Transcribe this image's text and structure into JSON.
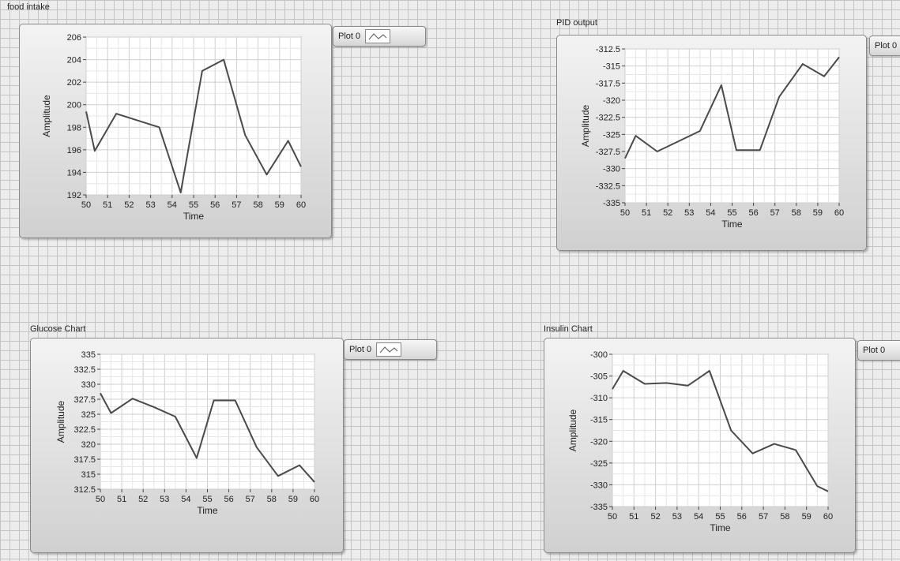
{
  "charts": [
    {
      "id": "food",
      "label": "food intake",
      "legend_label": "Plot 0",
      "chart_data": {
        "type": "line",
        "title": "food intake",
        "xlabel": "Time",
        "ylabel": "Amplitude",
        "xlim": [
          50,
          60
        ],
        "ylim": [
          192,
          206
        ],
        "xticks": [
          "50",
          "51",
          "52",
          "53",
          "54",
          "55",
          "56",
          "57",
          "58",
          "59",
          "60"
        ],
        "yticks": [
          "192",
          "194",
          "196",
          "198",
          "200",
          "202",
          "204",
          "206"
        ],
        "grid": true,
        "series": [
          {
            "x": [
              50,
              50.4,
              51.4,
              52.4,
              53.4,
              54.4,
              55.4,
              56.4,
              57.4,
              58.4,
              59.4,
              60
            ],
            "y": [
              199.4,
              195.9,
              199.2,
              198.6,
              198.0,
              192.2,
              203.0,
              204.0,
              197.3,
              193.8,
              196.8,
              194.5
            ]
          }
        ]
      }
    },
    {
      "id": "pid",
      "label": "PID output",
      "legend_label": "Plot 0",
      "chart_data": {
        "type": "line",
        "title": "PID output",
        "xlabel": "Time",
        "ylabel": "Amplitude",
        "xlim": [
          50,
          60
        ],
        "ylim": [
          -335,
          -312.5
        ],
        "xticks": [
          "50",
          "51",
          "52",
          "53",
          "54",
          "55",
          "56",
          "57",
          "58",
          "59",
          "60"
        ],
        "yticks": [
          "-312.5",
          "-315",
          "-317.5",
          "-320",
          "-322.5",
          "-325",
          "-327.5",
          "-330",
          "-332.5",
          "-335"
        ],
        "grid": true,
        "series": [
          {
            "x": [
              50,
              50.5,
              51.5,
              52.5,
              53.5,
              54.5,
              55.2,
              56.3,
              57.2,
              58.3,
              59.3,
              60
            ],
            "y": [
              -328.5,
              -325.2,
              -327.5,
              -326.0,
              -324.5,
              -317.8,
              -327.3,
              -327.3,
              -319.5,
              -314.7,
              -316.5,
              -313.7
            ]
          }
        ]
      }
    },
    {
      "id": "glucose",
      "label": "Glucose Chart",
      "legend_label": "Plot 0",
      "chart_data": {
        "type": "line",
        "title": "Glucose Chart",
        "xlabel": "Time",
        "ylabel": "Amplitude",
        "xlim": [
          50,
          60
        ],
        "ylim": [
          312.5,
          335
        ],
        "xticks": [
          "50",
          "51",
          "52",
          "53",
          "54",
          "55",
          "56",
          "57",
          "58",
          "59",
          "60"
        ],
        "yticks": [
          "335",
          "332.5",
          "330",
          "327.5",
          "325",
          "322.5",
          "320",
          "317.5",
          "315",
          "312.5"
        ],
        "grid": true,
        "series": [
          {
            "x": [
              50,
              50.5,
              51.5,
              52.5,
              53.5,
              54.5,
              55.3,
              56.3,
              57.3,
              58.3,
              59.3,
              60
            ],
            "y": [
              328.5,
              325.2,
              327.6,
              326.2,
              324.6,
              317.7,
              327.3,
              327.3,
              319.5,
              314.7,
              316.5,
              313.7
            ]
          }
        ]
      }
    },
    {
      "id": "insulin",
      "label": "Insulin Chart",
      "legend_label": "Plot 0",
      "chart_data": {
        "type": "line",
        "title": "Insulin Chart",
        "xlabel": "Time",
        "ylabel": "Amplitude",
        "xlim": [
          50,
          60
        ],
        "ylim": [
          -335,
          -300
        ],
        "xticks": [
          "50",
          "51",
          "52",
          "53",
          "54",
          "55",
          "56",
          "57",
          "58",
          "59",
          "60"
        ],
        "yticks": [
          "-300",
          "-305",
          "-310",
          "-315",
          "-320",
          "-325",
          "-330",
          "-335"
        ],
        "grid": true,
        "series": [
          {
            "x": [
              50,
              50.5,
              51.5,
              52.5,
              53.5,
              54.5,
              55.5,
              56.5,
              57.5,
              58.5,
              59.5,
              60
            ],
            "y": [
              -308.0,
              -303.8,
              -306.8,
              -306.6,
              -307.2,
              -303.8,
              -317.5,
              -322.8,
              -320.6,
              -322.0,
              -330.3,
              -331.5
            ]
          }
        ]
      }
    }
  ]
}
